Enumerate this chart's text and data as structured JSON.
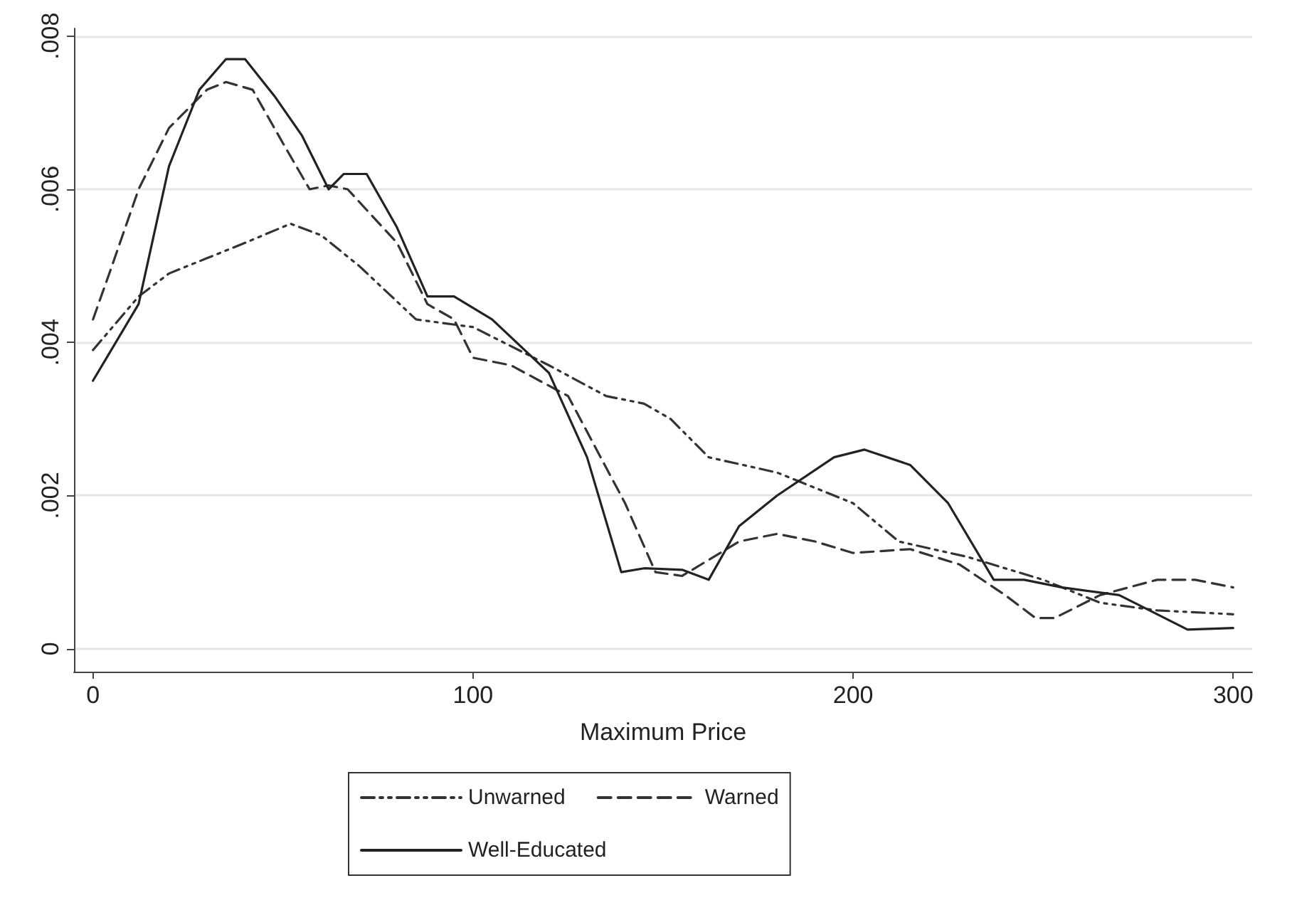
{
  "chart_data": {
    "type": "line",
    "xlabel": "Maximum Price",
    "xlim": [
      -5,
      305
    ],
    "xticks": [
      0,
      100,
      200,
      300
    ],
    "ylim": [
      -0.0003,
      0.0081
    ],
    "yticks": [
      {
        "value": 0,
        "label": "0"
      },
      {
        "value": 0.002,
        "label": ".002"
      },
      {
        "value": 0.004,
        "label": ".004"
      },
      {
        "value": 0.006,
        "label": ".006"
      },
      {
        "value": 0.008,
        "label": ".008"
      }
    ],
    "grid": "y",
    "legend": "bottom",
    "marker": "none",
    "series": [
      {
        "name": "Unwarned",
        "color": "#333333",
        "line_style": "dashdot",
        "x": [
          0,
          12,
          20,
          30,
          35,
          40,
          52,
          60,
          70,
          85,
          100,
          120,
          135,
          145,
          152,
          162,
          180,
          200,
          212,
          230,
          250,
          265,
          280,
          300
        ],
        "values": [
          0.0039,
          0.0046,
          0.0049,
          0.0051,
          0.0052,
          0.0053,
          0.00555,
          0.0054,
          0.005,
          0.0043,
          0.0042,
          0.0037,
          0.0033,
          0.0032,
          0.003,
          0.0025,
          0.0023,
          0.0019,
          0.0014,
          0.0012,
          0.0009,
          0.0006,
          0.0005,
          0.00045
        ]
      },
      {
        "name": "Warned",
        "color": "#333333",
        "line_style": "dashed",
        "x": [
          0,
          5,
          12,
          20,
          30,
          35,
          42,
          50,
          57,
          62,
          67,
          80,
          88,
          95,
          100,
          110,
          125,
          140,
          148,
          155,
          170,
          180,
          190,
          200,
          215,
          228,
          240,
          248,
          253,
          265,
          280,
          290,
          300
        ],
        "values": [
          0.0043,
          0.005,
          0.006,
          0.0068,
          0.0073,
          0.0074,
          0.0073,
          0.0066,
          0.006,
          0.00605,
          0.006,
          0.0053,
          0.0045,
          0.0043,
          0.0038,
          0.0037,
          0.0033,
          0.0019,
          0.001,
          0.00095,
          0.0014,
          0.0015,
          0.0014,
          0.00125,
          0.0013,
          0.0011,
          0.0007,
          0.0004,
          0.0004,
          0.0007,
          0.0009,
          0.0009,
          0.0008
        ]
      },
      {
        "name": "Well-Educated",
        "color": "#222222",
        "line_style": "solid",
        "x": [
          0,
          12,
          20,
          28,
          35,
          40,
          48,
          55,
          62,
          66,
          72,
          80,
          88,
          95,
          105,
          120,
          130,
          139,
          145,
          155,
          162,
          170,
          180,
          195,
          203,
          215,
          225,
          237,
          245,
          255,
          270,
          278,
          288,
          300
        ],
        "values": [
          0.0035,
          0.0045,
          0.0063,
          0.0073,
          0.0077,
          0.0077,
          0.0072,
          0.0067,
          0.006,
          0.0062,
          0.0062,
          0.0055,
          0.0046,
          0.0046,
          0.0043,
          0.0036,
          0.0025,
          0.001,
          0.00105,
          0.00103,
          0.0009,
          0.0016,
          0.002,
          0.0025,
          0.0026,
          0.0024,
          0.0019,
          0.0009,
          0.0009,
          0.0008,
          0.0007,
          0.0005,
          0.00025,
          0.00027
        ]
      }
    ]
  }
}
